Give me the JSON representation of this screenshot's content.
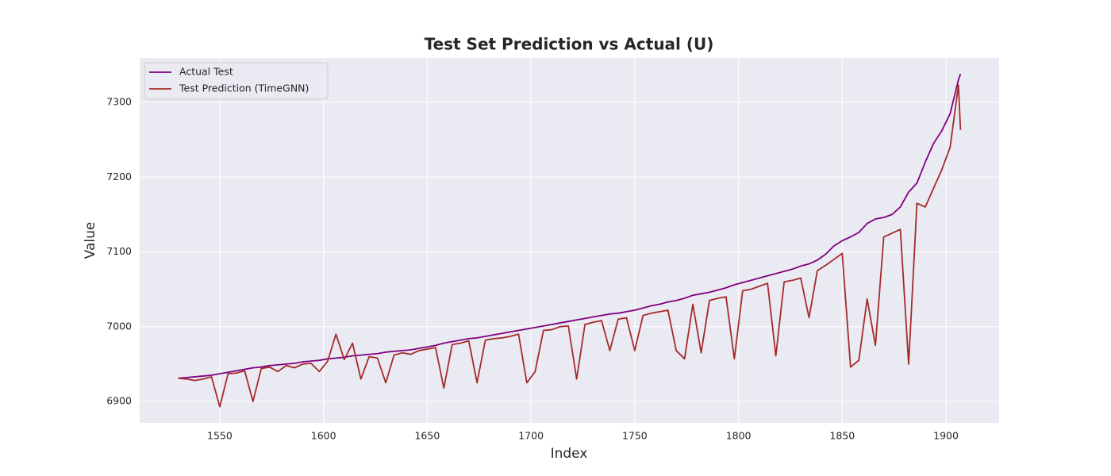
{
  "chart_data": {
    "type": "line",
    "title": "Test Set Prediction vs Actual (U)",
    "xlabel": "Index",
    "ylabel": "Value",
    "x": [
      1530,
      1534,
      1538,
      1542,
      1546,
      1550,
      1554,
      1558,
      1562,
      1566,
      1570,
      1574,
      1578,
      1582,
      1586,
      1590,
      1594,
      1598,
      1602,
      1606,
      1610,
      1614,
      1618,
      1622,
      1626,
      1630,
      1634,
      1638,
      1642,
      1646,
      1650,
      1654,
      1658,
      1662,
      1666,
      1670,
      1674,
      1678,
      1682,
      1686,
      1690,
      1694,
      1698,
      1702,
      1706,
      1710,
      1714,
      1718,
      1722,
      1726,
      1730,
      1734,
      1738,
      1742,
      1746,
      1750,
      1754,
      1758,
      1762,
      1766,
      1770,
      1774,
      1778,
      1782,
      1786,
      1790,
      1794,
      1798,
      1802,
      1806,
      1810,
      1814,
      1818,
      1822,
      1826,
      1830,
      1834,
      1838,
      1842,
      1846,
      1850,
      1854,
      1858,
      1862,
      1866,
      1870,
      1874,
      1878,
      1882,
      1886,
      1890,
      1894,
      1898,
      1902,
      1906,
      1907
    ],
    "series": [
      {
        "name": "Actual Test",
        "color": "#800080",
        "values": [
          6931,
          6932,
          6933,
          6934,
          6935,
          6937,
          6939,
          6941,
          6943,
          6945,
          6946,
          6948,
          6949,
          6950,
          6951,
          6953,
          6954,
          6955,
          6957,
          6958,
          6959,
          6961,
          6962,
          6963,
          6964,
          6966,
          6967,
          6968,
          6969,
          6971,
          6973,
          6975,
          6978,
          6980,
          6982,
          6984,
          6985,
          6987,
          6989,
          6991,
          6993,
          6995,
          6997,
          6999,
          7001,
          7003,
          7005,
          7007,
          7009,
          7011,
          7013,
          7015,
          7017,
          7018,
          7020,
          7022,
          7025,
          7028,
          7030,
          7033,
          7035,
          7038,
          7042,
          7044,
          7046,
          7049,
          7052,
          7056,
          7059,
          7062,
          7065,
          7068,
          7071,
          7074,
          7077,
          7081,
          7084,
          7089,
          7097,
          7108,
          7115,
          7120,
          7126,
          7138,
          7144,
          7146,
          7150,
          7160,
          7180,
          7192,
          7220,
          7245,
          7262,
          7285,
          7330,
          7338
        ]
      },
      {
        "name": "Test Prediction (TimeGNN)",
        "color": "#a52a2a",
        "values": [
          6931,
          6930,
          6928,
          6930,
          6933,
          6893,
          6937,
          6938,
          6941,
          6900,
          6944,
          6946,
          6940,
          6948,
          6945,
          6950,
          6951,
          6940,
          6954,
          6990,
          6956,
          6978,
          6930,
          6960,
          6958,
          6925,
          6962,
          6965,
          6963,
          6968,
          6970,
          6972,
          6918,
          6976,
          6978,
          6981,
          6925,
          6982,
          6984,
          6985,
          6987,
          6990,
          6925,
          6940,
          6995,
          6996,
          7000,
          7001,
          6930,
          7003,
          7006,
          7008,
          6968,
          7010,
          7012,
          6968,
          7015,
          7018,
          7020,
          7022,
          6968,
          6957,
          7030,
          6965,
          7035,
          7038,
          7040,
          6957,
          7048,
          7050,
          7054,
          7058,
          6961,
          7060,
          7062,
          7065,
          7012,
          7075,
          7082,
          7090,
          7098,
          6946,
          6955,
          7037,
          6975,
          7120,
          7125,
          7130,
          6950,
          7165,
          7160,
          7185,
          7210,
          7240,
          7323,
          7263
        ]
      }
    ],
    "xlim": [
      1511.4,
      1925.6
    ],
    "ylim": [
      6871.4,
      7359.4
    ],
    "xticks": [
      1550,
      1600,
      1650,
      1700,
      1750,
      1800,
      1850,
      1900
    ],
    "yticks": [
      6900,
      7000,
      7100,
      7200,
      7300
    ],
    "grid": true,
    "legend": "upper left"
  }
}
